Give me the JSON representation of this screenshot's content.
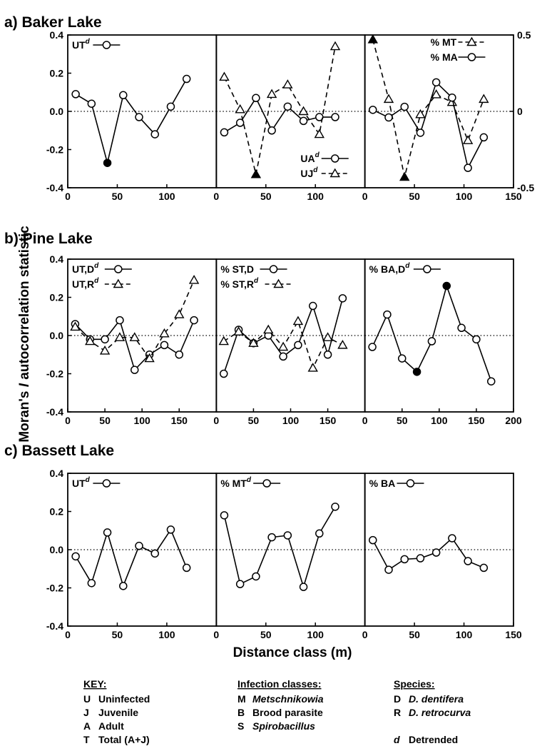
{
  "y_axis_title": "Moran's I autocorrelation statistic",
  "y_axis_parts": [
    "Moran's ",
    "I",
    " autocorrelation statistic"
  ],
  "x_axis_title": "Distance class (m)",
  "chart_data": [
    {
      "row_title": "a) Baker Lake",
      "ylim": [
        -0.4,
        0.4
      ],
      "yticks": [
        "0.4",
        "0.2",
        "0.0",
        "-0.2",
        "-0.4"
      ],
      "panels": [
        {
          "xlim": [
            0,
            150
          ],
          "xticks": [
            "0",
            "50",
            "100"
          ],
          "series": [
            {
              "name": "UT",
              "sup": "d",
              "marker": "circle",
              "dash": false,
              "x": [
                8,
                24,
                40,
                56,
                72,
                88,
                104,
                120
              ],
              "y": [
                0.09,
                0.04,
                -0.27,
                0.085,
                -0.03,
                -0.12,
                0.025,
                0.17
              ],
              "filled": [
                2
              ]
            }
          ]
        },
        {
          "xlim": [
            0,
            150
          ],
          "xticks": [
            "0",
            "50",
            "100"
          ],
          "series": [
            {
              "name": "UA",
              "sup": "d",
              "marker": "circle",
              "dash": false,
              "x": [
                8,
                24,
                40,
                56,
                72,
                88,
                104,
                120
              ],
              "y": [
                -0.11,
                -0.06,
                0.07,
                -0.1,
                0.025,
                -0.05,
                -0.03,
                -0.03
              ],
              "filled": []
            },
            {
              "name": "UJ",
              "sup": "d",
              "marker": "triangle",
              "dash": true,
              "x": [
                8,
                24,
                40,
                56,
                72,
                88,
                104,
                120
              ],
              "y": [
                0.18,
                0.01,
                -0.33,
                0.09,
                0.14,
                0.0,
                -0.12,
                0.34
              ],
              "filled": [
                2
              ]
            }
          ]
        },
        {
          "xlim": [
            0,
            150
          ],
          "xticks": [
            "0",
            "50",
            "100",
            "150"
          ],
          "y2lim": [
            -0.5,
            0.5
          ],
          "y2ticks": [
            "0.5",
            "0",
            "-0.5"
          ],
          "series": [
            {
              "name": "% MT",
              "sup": "",
              "marker": "triangle",
              "dash": true,
              "x": [
                8,
                24,
                40,
                56,
                72,
                88,
                104,
                120
              ],
              "y": [
                0.47,
                0.08,
                -0.43,
                -0.02,
                0.11,
                0.06,
                -0.19,
                0.08
              ],
              "filled": [
                0,
                2
              ]
            },
            {
              "name": "% MA",
              "sup": "",
              "marker": "circle",
              "dash": false,
              "x": [
                8,
                24,
                40,
                56,
                72,
                88,
                104,
                120
              ],
              "y": [
                0.01,
                -0.04,
                0.03,
                -0.14,
                0.19,
                0.09,
                -0.37,
                -0.17
              ],
              "filled": []
            }
          ]
        }
      ]
    },
    {
      "row_title": "b) Pine Lake",
      "ylim": [
        -0.4,
        0.4
      ],
      "yticks": [
        "0.4",
        "0.2",
        "0.0",
        "-0.2",
        "-0.4"
      ],
      "panels": [
        {
          "xlim": [
            0,
            200
          ],
          "xticks": [
            "0",
            "50",
            "100",
            "150"
          ],
          "series": [
            {
              "name": "UT,D",
              "sup": "d",
              "marker": "circle",
              "dash": false,
              "x": [
                10,
                30,
                50,
                70,
                90,
                110,
                130,
                150,
                170
              ],
              "y": [
                0.06,
                -0.02,
                -0.02,
                0.08,
                -0.18,
                -0.1,
                -0.05,
                -0.1,
                0.08
              ],
              "filled": []
            },
            {
              "name": "UT,R",
              "sup": "d",
              "marker": "triangle",
              "dash": true,
              "x": [
                10,
                30,
                50,
                70,
                90,
                110,
                130,
                150,
                170
              ],
              "y": [
                0.045,
                -0.03,
                -0.08,
                -0.01,
                -0.01,
                -0.12,
                0.01,
                0.11,
                0.29
              ],
              "filled": []
            }
          ]
        },
        {
          "xlim": [
            0,
            200
          ],
          "xticks": [
            "0",
            "50",
            "100",
            "150"
          ],
          "series": [
            {
              "name": "% ST,D",
              "sup": "",
              "marker": "circle",
              "dash": false,
              "x": [
                10,
                30,
                50,
                70,
                90,
                110,
                130,
                150,
                170
              ],
              "y": [
                -0.2,
                0.03,
                -0.04,
                0.0,
                -0.11,
                -0.05,
                0.155,
                -0.1,
                0.195
              ],
              "filled": []
            },
            {
              "name": "% ST,R",
              "sup": "d",
              "marker": "triangle",
              "dash": true,
              "x": [
                10,
                30,
                50,
                70,
                90,
                110,
                130,
                150,
                170
              ],
              "y": [
                -0.03,
                0.02,
                -0.04,
                0.03,
                -0.06,
                0.075,
                -0.17,
                -0.01,
                -0.05
              ],
              "filled": []
            }
          ]
        },
        {
          "xlim": [
            0,
            200
          ],
          "xticks": [
            "0",
            "50",
            "100",
            "150",
            "200"
          ],
          "series": [
            {
              "name": "% BA,D",
              "sup": "d",
              "marker": "circle",
              "dash": false,
              "x": [
                10,
                30,
                50,
                70,
                90,
                110,
                130,
                150,
                170
              ],
              "y": [
                -0.06,
                0.11,
                -0.12,
                -0.19,
                -0.03,
                0.26,
                0.04,
                -0.02,
                -0.24
              ],
              "filled": [
                3,
                5
              ]
            }
          ]
        }
      ]
    },
    {
      "row_title": "c) Bassett Lake",
      "ylim": [
        -0.4,
        0.4
      ],
      "yticks": [
        "0.4",
        "0.2",
        "0.0",
        "-0.2",
        "-0.4"
      ],
      "panels": [
        {
          "xlim": [
            0,
            150
          ],
          "xticks": [
            "0",
            "50",
            "100"
          ],
          "series": [
            {
              "name": "UT",
              "sup": "d",
              "marker": "circle",
              "dash": false,
              "x": [
                8,
                24,
                40,
                56,
                72,
                88,
                104,
                120
              ],
              "y": [
                -0.035,
                -0.175,
                0.09,
                -0.19,
                0.02,
                -0.02,
                0.105,
                -0.095
              ],
              "filled": []
            }
          ]
        },
        {
          "xlim": [
            0,
            150
          ],
          "xticks": [
            "0",
            "50",
            "100"
          ],
          "series": [
            {
              "name": "% MT",
              "sup": "d",
              "marker": "circle",
              "dash": false,
              "x": [
                8,
                24,
                40,
                56,
                72,
                88,
                104,
                120
              ],
              "y": [
                0.18,
                -0.18,
                -0.14,
                0.065,
                0.075,
                -0.195,
                0.085,
                0.225
              ],
              "filled": []
            }
          ]
        },
        {
          "xlim": [
            0,
            150
          ],
          "xticks": [
            "0",
            "50",
            "100",
            "150"
          ],
          "series": [
            {
              "name": "% BA",
              "sup": "",
              "marker": "circle",
              "dash": false,
              "x": [
                8,
                24,
                40,
                56,
                72,
                88,
                104,
                120
              ],
              "y": [
                0.05,
                -0.105,
                -0.05,
                -0.045,
                -0.015,
                0.06,
                -0.06,
                -0.095
              ],
              "filled": []
            }
          ]
        }
      ]
    }
  ],
  "key": {
    "columns": [
      {
        "heading": "KEY:",
        "rows": [
          [
            "U",
            "Uninfected",
            false
          ],
          [
            "J",
            "Juvenile",
            false
          ],
          [
            "A",
            "Adult",
            false
          ],
          [
            "T",
            "Total (A+J)",
            false
          ]
        ]
      },
      {
        "heading": "Infection classes:",
        "rows": [
          [
            "M",
            "Metschnikowia",
            true
          ],
          [
            "B",
            "Brood parasite",
            false
          ],
          [
            "S",
            "Spirobacillus",
            true
          ]
        ]
      },
      {
        "heading": "Species:",
        "rows": [
          [
            "D",
            "D. dentifera",
            true
          ],
          [
            "R",
            "D. retrocurva",
            true
          ],
          [
            "",
            "",
            false
          ],
          [
            "d",
            "Detrended",
            false
          ]
        ]
      }
    ]
  }
}
